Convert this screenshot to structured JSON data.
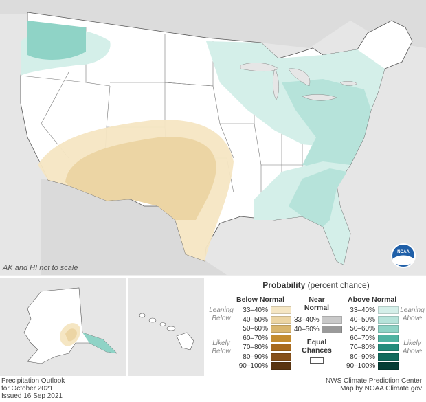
{
  "map": {
    "note": "AK and HI not to scale",
    "logo_text": "NOAA"
  },
  "legend": {
    "title_bold": "Probability",
    "title_rest": " (percent chance)",
    "below": {
      "heading": "Below Normal",
      "leaning": [
        "Leaning",
        "Below"
      ],
      "likely": [
        "Likely",
        "Below"
      ],
      "rows": [
        {
          "label": "33–40%",
          "color": "#f5e6c3"
        },
        {
          "label": "40–50%",
          "color": "#ecd5a4"
        },
        {
          "label": "50–60%",
          "color": "#d9b66f"
        },
        {
          "label": "60–70%",
          "color": "#c48c2f"
        },
        {
          "label": "70–80%",
          "color": "#a86a1d"
        },
        {
          "label": "80–90%",
          "color": "#86501a"
        },
        {
          "label": "90–100%",
          "color": "#5a3410"
        }
      ]
    },
    "near": {
      "heading1": "Near",
      "heading2": "Normal",
      "rows": [
        {
          "label": "33–40%",
          "color": "#c9c9c9"
        },
        {
          "label": "40–50%",
          "color": "#9a9a9a"
        }
      ],
      "equal1": "Equal",
      "equal2": "Chances"
    },
    "above": {
      "heading": "Above Normal",
      "leaning": [
        "Leaning",
        "Above"
      ],
      "likely": [
        "Likely",
        "Above"
      ],
      "rows": [
        {
          "label": "33–40%",
          "color": "#d4efe9"
        },
        {
          "label": "40–50%",
          "color": "#b6e3da"
        },
        {
          "label": "50–60%",
          "color": "#8fd3c6"
        },
        {
          "label": "60–70%",
          "color": "#4fb3a2"
        },
        {
          "label": "70–80%",
          "color": "#238c7c"
        },
        {
          "label": "80–90%",
          "color": "#116b5e"
        },
        {
          "label": "90–100%",
          "color": "#053d35"
        }
      ]
    }
  },
  "footer": {
    "left": [
      "Precipitation Outlook",
      "for October 2021",
      "Issued 16 Sep 2021"
    ],
    "right": [
      "NWS Climate Prediction Center",
      "Map by NOAA Climate.gov"
    ]
  },
  "colors": {
    "land_base": "#ffffff",
    "background": "#e6e6e6",
    "border": "#444444"
  }
}
